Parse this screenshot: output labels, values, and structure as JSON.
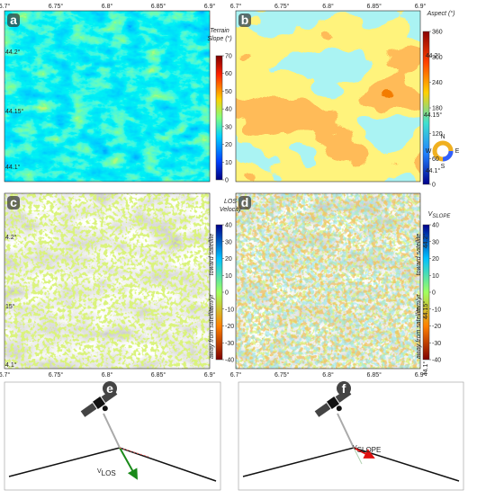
{
  "panels": [
    {
      "label": "a",
      "lon_ticks": [
        "6.7°",
        "6.75°",
        "6.8°",
        "6.85°",
        "6.9°"
      ],
      "lat_ticks": [
        "44.2°",
        "44.15°",
        "44.1°"
      ],
      "colorbar": {
        "title": [
          "Terrain",
          "Slope (°)"
        ],
        "ticks": [
          "70",
          "60",
          "50",
          "40",
          "30",
          "20",
          "10",
          "0"
        ]
      }
    },
    {
      "label": "b",
      "lon_ticks": [
        "6.7°",
        "6.75°",
        "6.8°",
        "6.85°",
        "6.9°"
      ],
      "lat_ticks": [
        "44.2°",
        "44.15°",
        "44.1°"
      ],
      "colorbar": {
        "title": [
          "Aspect (°)"
        ],
        "ticks": [
          "360",
          "300",
          "240",
          "180",
          "120",
          "60",
          "0"
        ]
      },
      "compass": {
        "n": "N",
        "e": "E",
        "s": "S",
        "w": "W"
      }
    },
    {
      "label": "c",
      "lon_ticks": [
        "6.7°",
        "6.75°",
        "6.8°",
        "6.85°",
        "6.9°"
      ],
      "lat_ticks": [
        "4.2°",
        "15°",
        "4.1°"
      ],
      "colorbar": {
        "title": [
          "LOS",
          "Velocity"
        ],
        "ticks": [
          "40",
          "30",
          "20",
          "10",
          "0",
          "-10",
          "-20",
          "-30",
          "-40"
        ],
        "unit": "mm/yr",
        "toward": "toward satellite",
        "away": "away from satellite"
      }
    },
    {
      "label": "d",
      "lon_ticks": [
        "6.7°",
        "6.75°",
        "6.8°",
        "6.85°",
        "6.9°"
      ],
      "lat_ticks": [
        "44.2°",
        "44.15°",
        "44.1°"
      ],
      "colorbar": {
        "title_main": "V",
        "title_sub": "SLOPE",
        "ticks": [
          "40",
          "30",
          "20",
          "10",
          "0",
          "-10",
          "-20",
          "-30",
          "-40"
        ],
        "unit": "mm/yr",
        "toward": "toward satellite",
        "away": "away from satellite"
      }
    }
  ],
  "diagrams": [
    {
      "label": "e",
      "vector": {
        "main": "V",
        "sub": "LOS"
      }
    },
    {
      "label": "f",
      "vector": {
        "main": "V",
        "sub": "SLOPE"
      }
    }
  ]
}
